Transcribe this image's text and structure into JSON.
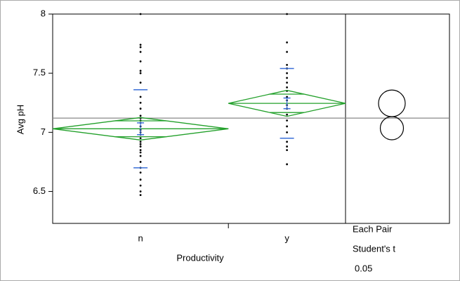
{
  "chart_data": {
    "type": "oneway",
    "y_label": "Avg pH",
    "x_label": "Productivity",
    "categories": [
      "n",
      "y"
    ],
    "points": [
      [
        8.0,
        7.74,
        7.72,
        7.68,
        7.6,
        7.52,
        7.5,
        7.42,
        7.3,
        7.25,
        7.2,
        7.14,
        7.12,
        7.1,
        7.08,
        7.05,
        7.02,
        7.0,
        6.98,
        6.95,
        6.92,
        6.9,
        6.88,
        6.85,
        6.83,
        6.8,
        6.75,
        6.7,
        6.66,
        6.6,
        6.55,
        6.5,
        6.47
      ],
      [
        8.0,
        7.76,
        7.68,
        7.57,
        7.54,
        7.5,
        7.46,
        7.42,
        7.38,
        7.35,
        7.3,
        7.27,
        7.23,
        7.2,
        7.15,
        7.1,
        7.05,
        7.0,
        6.92,
        6.88,
        6.85,
        6.73
      ]
    ],
    "point_color": "#000000",
    "means": [
      7.03,
      7.245
    ],
    "ci_lower": [
      6.935,
      7.135
    ],
    "ci_upper": [
      7.125,
      7.355
    ],
    "std_dev": [
      0.33,
      0.295
    ],
    "std_err": [
      0.05,
      0.045
    ],
    "diamond_color": "#22a02a",
    "bar_color": "#3a6fd8",
    "grand_mean": 7.12,
    "circles": [
      {
        "center": 7.245,
        "radius": 0.113
      },
      {
        "center": 7.035,
        "radius": 0.098
      }
    ],
    "comparison": "Each Pair",
    "test": "Student's t",
    "alpha": 0.05,
    "ylim": [
      6.23,
      8.0
    ],
    "yticks": [
      6.5,
      7,
      7.5,
      8
    ]
  }
}
